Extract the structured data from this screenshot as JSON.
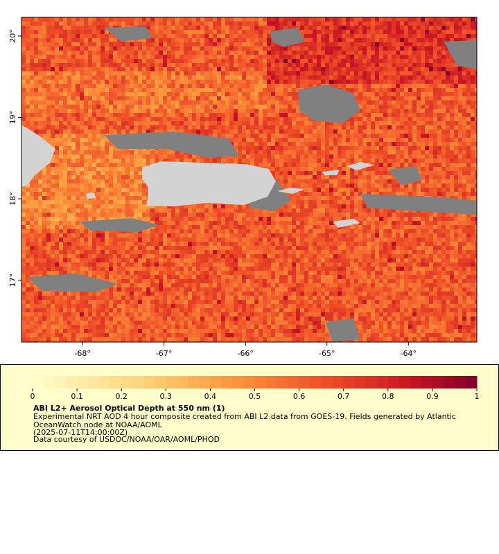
{
  "map": {
    "lon_range": [
      -68.75,
      -63.16
    ],
    "lat_range": [
      16.24,
      20.23
    ],
    "lon_ticks": [
      {
        "value": -68,
        "label": "-68°"
      },
      {
        "value": -67,
        "label": "-67°"
      },
      {
        "value": -66,
        "label": "-66°"
      },
      {
        "value": -65,
        "label": "-65°"
      },
      {
        "value": -64,
        "label": "-64°"
      }
    ],
    "lat_ticks": [
      {
        "value": 20,
        "label": "20°"
      },
      {
        "value": 19,
        "label": "19°"
      },
      {
        "value": 18,
        "label": "18°"
      },
      {
        "value": 17,
        "label": "17°"
      }
    ]
  },
  "legend": {
    "colorbar": {
      "range": [
        0,
        1
      ],
      "ticks": [
        0,
        0.1,
        0.2,
        0.3,
        0.4,
        0.5,
        0.6,
        0.7,
        0.8,
        0.9,
        1
      ]
    },
    "title": "ABI L2+ Aerosol Optical Depth at 550 nm (1)",
    "lines": [
      "Experimental NRT AOD 4 hour composite created from ABI L2 data from GOES-19. Fields generated by Atlantic",
      "OceanWatch node at NOAA/AOML",
      "(2025-07-11T14:00:00Z)",
      "Data courtesy of USDOC/NOAA/OAR/AOML/PHOD"
    ]
  }
}
